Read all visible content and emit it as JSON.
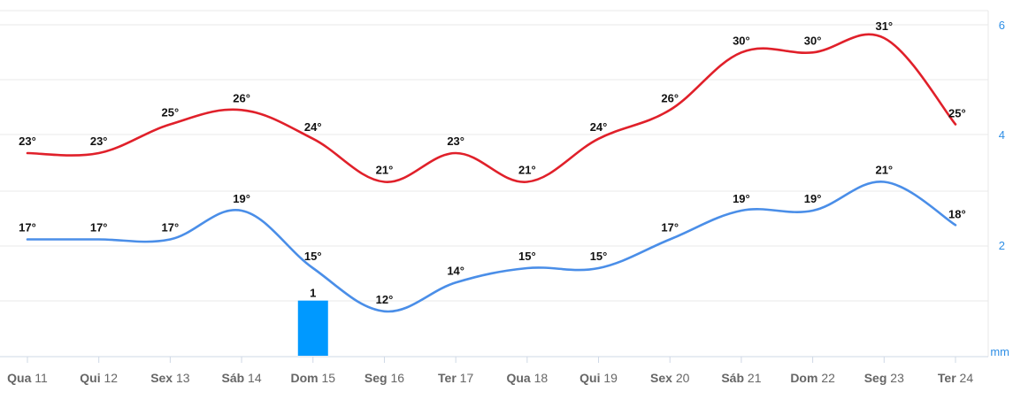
{
  "chart_data": {
    "type": "line",
    "categories": [
      {
        "day": "Qua",
        "num": "11"
      },
      {
        "day": "Qui",
        "num": "12"
      },
      {
        "day": "Sex",
        "num": "13"
      },
      {
        "day": "Sáb",
        "num": "14"
      },
      {
        "day": "Dom",
        "num": "15"
      },
      {
        "day": "Seg",
        "num": "16"
      },
      {
        "day": "Ter",
        "num": "17"
      },
      {
        "day": "Qua",
        "num": "18"
      },
      {
        "day": "Qui",
        "num": "19"
      },
      {
        "day": "Sex",
        "num": "20"
      },
      {
        "day": "Sáb",
        "num": "21"
      },
      {
        "day": "Dom",
        "num": "22"
      },
      {
        "day": "Seg",
        "num": "23"
      },
      {
        "day": "Ter",
        "num": "24"
      }
    ],
    "series": [
      {
        "color": "#e0202a",
        "values": [
          23,
          23,
          25,
          26,
          24,
          21,
          23,
          21,
          24,
          26,
          30,
          30,
          31,
          25
        ],
        "labels": [
          "23°",
          "23°",
          "25°",
          "26°",
          "24°",
          "21°",
          "23°",
          "21°",
          "24°",
          "26°",
          "30°",
          "30°",
          "31°",
          "25°"
        ]
      },
      {
        "color": "#4a8ee8",
        "values": [
          17,
          17,
          17,
          19,
          15,
          12,
          14,
          15,
          15,
          17,
          19,
          19,
          21,
          18
        ],
        "labels": [
          "17°",
          "17°",
          "17°",
          "19°",
          "15°",
          "12°",
          "14°",
          "15°",
          "15°",
          "17°",
          "19°",
          "19°",
          "21°",
          "18°"
        ]
      }
    ],
    "precipitation": {
      "color": "#0099ff",
      "values": [
        0,
        0,
        0,
        0,
        1,
        0,
        0,
        0,
        0,
        0,
        0,
        0,
        0,
        0
      ],
      "labels": [
        "",
        "",
        "",
        "",
        "1",
        "",
        "",
        "",
        "",
        "",
        "",
        "",
        "",
        ""
      ]
    },
    "y_right_axis": {
      "ticks": [
        "6",
        "4",
        "2"
      ],
      "unit": "mm",
      "color": "#2f8fe6",
      "ylim": [
        0,
        6
      ]
    },
    "grid": true
  }
}
